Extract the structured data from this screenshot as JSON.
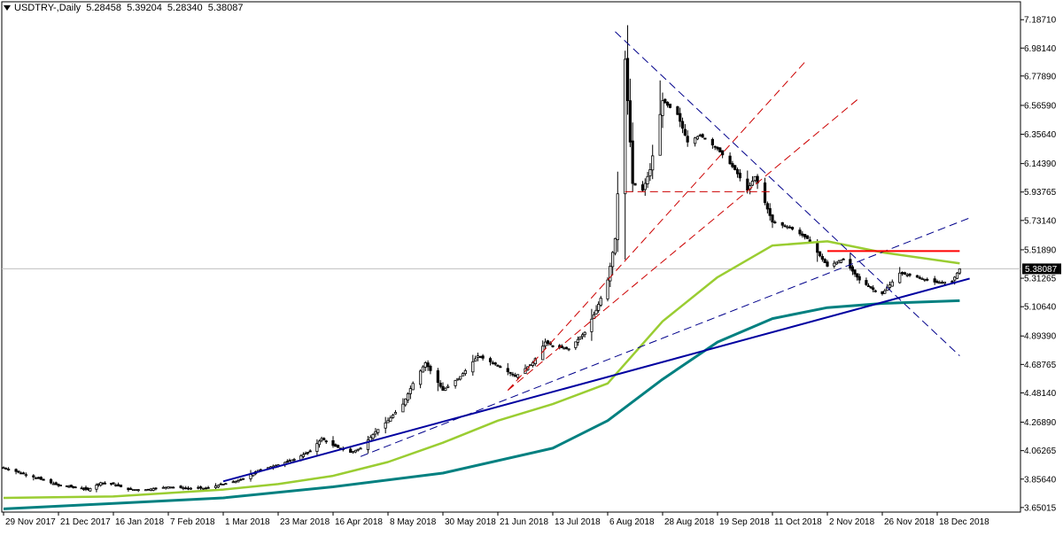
{
  "header": {
    "symbol": "USDTRY-,Daily",
    "open": "5.28458",
    "high": "5.39204",
    "low": "5.28340",
    "close": "5.38087"
  },
  "current_price_label": "5.38087",
  "colors": {
    "candle": "#000000",
    "ma_short": "#9acd32",
    "ma_long": "#008080",
    "trend_solid": "#0000a0",
    "trend_dashed": "#00008b",
    "fib_dashed": "#cc0000",
    "resistance": "#ff0000",
    "price_line": "#c0c0c0"
  },
  "chart_data": {
    "type": "line",
    "title": "",
    "xlabel": "",
    "ylabel": "",
    "ylim": [
      3.63,
      7.24
    ],
    "grid": false,
    "y_ticks": [
      "7.18710",
      "6.98140",
      "6.77890",
      "6.56590",
      "6.35640",
      "6.14390",
      "5.93765",
      "5.73140",
      "5.51890",
      "5.31265",
      "5.10640",
      "4.89390",
      "4.68765",
      "4.48140",
      "4.26890",
      "4.06265",
      "3.85640",
      "3.65015"
    ],
    "x_ticks": [
      "29 Nov 2017",
      "21 Dec 2017",
      "16 Jan 2018",
      "7 Feb 2018",
      "1 Mar 2018",
      "23 Mar 2018",
      "16 Apr 2018",
      "8 May 2018",
      "30 May 2018",
      "21 Jun 2018",
      "13 Jul 2018",
      "6 Aug 2018",
      "28 Aug 2018",
      "19 Sep 2018",
      "11 Oct 2018",
      "2 Nov 2018",
      "26 Nov 2018",
      "18 Dec 2018"
    ],
    "x_tick_dates": [
      "2017-11-29",
      "2017-12-21",
      "2018-01-16",
      "2018-02-07",
      "2018-03-01",
      "2018-03-23",
      "2018-04-16",
      "2018-05-08",
      "2018-05-30",
      "2018-06-21",
      "2018-07-13",
      "2018-08-06",
      "2018-08-28",
      "2018-09-19",
      "2018-10-11",
      "2018-11-02",
      "2018-11-26",
      "2018-12-18"
    ],
    "close_series": [
      [
        "2017-11-29",
        3.94
      ],
      [
        "2017-12-06",
        3.9
      ],
      [
        "2017-12-13",
        3.86
      ],
      [
        "2017-12-21",
        3.81
      ],
      [
        "2017-12-28",
        3.8
      ],
      [
        "2018-01-04",
        3.78
      ],
      [
        "2018-01-10",
        3.83
      ],
      [
        "2018-01-16",
        3.82
      ],
      [
        "2018-01-22",
        3.78
      ],
      [
        "2018-01-29",
        3.78
      ],
      [
        "2018-02-07",
        3.8
      ],
      [
        "2018-02-15",
        3.79
      ],
      [
        "2018-02-22",
        3.79
      ],
      [
        "2018-03-01",
        3.82
      ],
      [
        "2018-03-08",
        3.85
      ],
      [
        "2018-03-15",
        3.92
      ],
      [
        "2018-03-23",
        3.96
      ],
      [
        "2018-03-30",
        4.0
      ],
      [
        "2018-04-06",
        4.06
      ],
      [
        "2018-04-11",
        4.15
      ],
      [
        "2018-04-16",
        4.1
      ],
      [
        "2018-04-23",
        4.05
      ],
      [
        "2018-04-27",
        4.08
      ],
      [
        "2018-05-03",
        4.2
      ],
      [
        "2018-05-08",
        4.28
      ],
      [
        "2018-05-14",
        4.4
      ],
      [
        "2018-05-18",
        4.55
      ],
      [
        "2018-05-23",
        4.7
      ],
      [
        "2018-05-30",
        4.5
      ],
      [
        "2018-06-06",
        4.6
      ],
      [
        "2018-06-13",
        4.75
      ],
      [
        "2018-06-21",
        4.68
      ],
      [
        "2018-06-28",
        4.6
      ],
      [
        "2018-07-05",
        4.7
      ],
      [
        "2018-07-10",
        4.85
      ],
      [
        "2018-07-13",
        4.82
      ],
      [
        "2018-07-20",
        4.8
      ],
      [
        "2018-07-27",
        4.92
      ],
      [
        "2018-08-01",
        5.08
      ],
      [
        "2018-08-06",
        5.3
      ],
      [
        "2018-08-09",
        5.6
      ],
      [
        "2018-08-13",
        6.9
      ],
      [
        "2018-08-16",
        6.0
      ],
      [
        "2018-08-20",
        5.95
      ],
      [
        "2018-08-23",
        6.1
      ],
      [
        "2018-08-28",
        6.6
      ],
      [
        "2018-09-03",
        6.5
      ],
      [
        "2018-09-07",
        6.3
      ],
      [
        "2018-09-12",
        6.35
      ],
      [
        "2018-09-19",
        6.25
      ],
      [
        "2018-09-26",
        6.1
      ],
      [
        "2018-10-01",
        5.95
      ],
      [
        "2018-10-04",
        6.05
      ],
      [
        "2018-10-11",
        5.72
      ],
      [
        "2018-10-18",
        5.68
      ],
      [
        "2018-10-25",
        5.6
      ],
      [
        "2018-11-02",
        5.4
      ],
      [
        "2018-11-09",
        5.45
      ],
      [
        "2018-11-16",
        5.3
      ],
      [
        "2018-11-23",
        5.22
      ],
      [
        "2018-11-26",
        5.2
      ],
      [
        "2018-12-03",
        5.35
      ],
      [
        "2018-12-10",
        5.32
      ],
      [
        "2018-12-18",
        5.28
      ],
      [
        "2018-12-24",
        5.29
      ],
      [
        "2018-12-27",
        5.38
      ]
    ],
    "ma_short_series": [
      [
        "2017-11-29",
        3.72
      ],
      [
        "2018-01-16",
        3.73
      ],
      [
        "2018-03-01",
        3.78
      ],
      [
        "2018-03-23",
        3.82
      ],
      [
        "2018-04-16",
        3.88
      ],
      [
        "2018-05-08",
        3.98
      ],
      [
        "2018-05-30",
        4.12
      ],
      [
        "2018-06-21",
        4.28
      ],
      [
        "2018-07-13",
        4.4
      ],
      [
        "2018-08-06",
        4.55
      ],
      [
        "2018-08-28",
        5.0
      ],
      [
        "2018-09-19",
        5.32
      ],
      [
        "2018-10-11",
        5.55
      ],
      [
        "2018-11-02",
        5.58
      ],
      [
        "2018-11-26",
        5.5
      ],
      [
        "2018-12-27",
        5.42
      ]
    ],
    "ma_long_series": [
      [
        "2017-11-29",
        3.64
      ],
      [
        "2018-01-16",
        3.68
      ],
      [
        "2018-03-01",
        3.72
      ],
      [
        "2018-04-16",
        3.8
      ],
      [
        "2018-05-30",
        3.9
      ],
      [
        "2018-07-13",
        4.08
      ],
      [
        "2018-08-06",
        4.28
      ],
      [
        "2018-08-28",
        4.58
      ],
      [
        "2018-09-19",
        4.85
      ],
      [
        "2018-10-11",
        5.02
      ],
      [
        "2018-11-02",
        5.1
      ],
      [
        "2018-11-26",
        5.13
      ],
      [
        "2018-12-27",
        5.15
      ]
    ],
    "trend_lines": [
      {
        "style": "solid",
        "color": "trend_solid",
        "from": [
          "2018-03-01",
          3.84
        ],
        "to": [
          "2018-12-31",
          5.31
        ]
      },
      {
        "style": "dashed",
        "color": "trend_dashed",
        "from": [
          "2018-04-27",
          4.02
        ],
        "to": [
          "2018-12-31",
          5.75
        ]
      },
      {
        "style": "dashed",
        "color": "trend_dashed",
        "from": [
          "2018-08-09",
          7.1
        ],
        "to": [
          "2018-12-27",
          4.75
        ]
      },
      {
        "style": "dashed",
        "color": "fib_dashed",
        "from": [
          "2018-06-25",
          4.5
        ],
        "to": [
          "2018-10-25",
          6.9
        ]
      },
      {
        "style": "dashed",
        "color": "fib_dashed",
        "from": [
          "2018-06-25",
          4.5
        ],
        "to": [
          "2018-11-16",
          6.62
        ]
      },
      {
        "style": "dashed",
        "color": "fib_dashed",
        "from": [
          "2018-08-13",
          5.94
        ],
        "to": [
          "2018-10-11",
          5.94
        ]
      },
      {
        "style": "solid",
        "color": "resistance",
        "from": [
          "2018-11-02",
          5.51
        ],
        "to": [
          "2018-12-27",
          5.51
        ]
      }
    ]
  }
}
